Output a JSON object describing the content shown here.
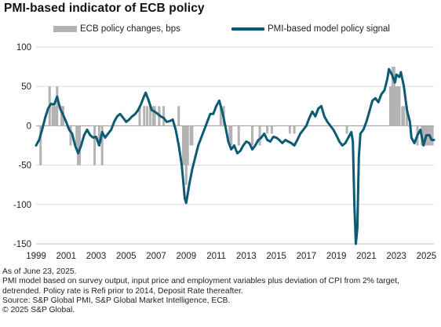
{
  "title": "PMI-based indicator of ECB policy",
  "legend": {
    "bars_label": "ECB policy changes, bps",
    "line_label": "PMI-based model policy signal"
  },
  "notes": {
    "asof": "As of June 23, 2025.",
    "method1": "PMI model based on survey output, input price and employment variables plus deviation of CPI from 2% target,",
    "method2": "detrended. Policy rate is Refi prior to 2014, Deposit Rate thereafter.",
    "source": "Source: S&P Global PMI, S&P Global Market Intelligence, ECB.",
    "copyright": "© 2025 S&P Global."
  },
  "colors": {
    "line": "#0d5a73",
    "bars": "#b3b3b3",
    "grid": "#d9d9d9",
    "zero": "#9a9a9a"
  },
  "chart_data": {
    "type": "bar+line",
    "title": "PMI-based indicator of ECB policy",
    "xlim": [
      1999.0,
      2025.5
    ],
    "ylim": [
      -150,
      100
    ],
    "yticks": [
      -150,
      -100,
      -50,
      0,
      50,
      100
    ],
    "xticks": [
      1999,
      2001,
      2003,
      2005,
      2007,
      2009,
      2011,
      2013,
      2015,
      2017,
      2019,
      2021,
      2023,
      2025
    ],
    "grid": true,
    "legend_position": "top",
    "series": [
      {
        "name": "ECB policy changes, bps",
        "kind": "bar",
        "points": [
          [
            1999.3,
            -50
          ],
          [
            1999.9,
            50
          ],
          [
            2000.1,
            25
          ],
          [
            2000.2,
            25
          ],
          [
            2000.3,
            25
          ],
          [
            2000.4,
            50
          ],
          [
            2000.7,
            25
          ],
          [
            2000.8,
            25
          ],
          [
            2001.3,
            -25
          ],
          [
            2001.7,
            -25
          ],
          [
            2001.8,
            -50
          ],
          [
            2001.9,
            -50
          ],
          [
            2002.9,
            -50
          ],
          [
            2003.2,
            -25
          ],
          [
            2003.4,
            -50
          ],
          [
            2005.9,
            25
          ],
          [
            2006.2,
            25
          ],
          [
            2006.4,
            25
          ],
          [
            2006.6,
            25
          ],
          [
            2006.8,
            25
          ],
          [
            2006.9,
            25
          ],
          [
            2007.2,
            25
          ],
          [
            2007.5,
            25
          ],
          [
            2008.5,
            25
          ],
          [
            2008.8,
            -50
          ],
          [
            2008.9,
            -50
          ],
          [
            2009.0,
            -75
          ],
          [
            2009.1,
            -50
          ],
          [
            2009.3,
            -25
          ],
          [
            2009.4,
            -25
          ],
          [
            2011.3,
            25
          ],
          [
            2011.5,
            25
          ],
          [
            2011.9,
            -25
          ],
          [
            2012.0,
            -25
          ],
          [
            2012.5,
            -25
          ],
          [
            2013.4,
            -25
          ],
          [
            2013.9,
            -25
          ],
          [
            2014.4,
            -10
          ],
          [
            2014.7,
            -10
          ],
          [
            2015.9,
            -10
          ],
          [
            2016.2,
            -10
          ],
          [
            2019.7,
            -10
          ],
          [
            2022.6,
            50
          ],
          [
            2022.75,
            75
          ],
          [
            2022.85,
            75
          ],
          [
            2022.95,
            50
          ],
          [
            2023.1,
            50
          ],
          [
            2023.2,
            50
          ],
          [
            2023.4,
            25
          ],
          [
            2023.5,
            25
          ],
          [
            2023.7,
            25
          ],
          [
            2024.4,
            -25
          ],
          [
            2024.7,
            -25
          ],
          [
            2024.8,
            -25
          ],
          [
            2024.95,
            -25
          ],
          [
            2025.1,
            -25
          ],
          [
            2025.25,
            -25
          ],
          [
            2025.4,
            -25
          ]
        ]
      },
      {
        "name": "PMI-based model policy signal",
        "kind": "line",
        "points": [
          [
            1999.0,
            -25
          ],
          [
            1999.2,
            -18
          ],
          [
            1999.4,
            -5
          ],
          [
            1999.6,
            10
          ],
          [
            1999.8,
            22
          ],
          [
            2000.0,
            28
          ],
          [
            2000.2,
            27
          ],
          [
            2000.4,
            37
          ],
          [
            2000.6,
            22
          ],
          [
            2000.8,
            14
          ],
          [
            2001.0,
            5
          ],
          [
            2001.2,
            -5
          ],
          [
            2001.4,
            -10
          ],
          [
            2001.6,
            -25
          ],
          [
            2001.8,
            -35
          ],
          [
            2002.0,
            -25
          ],
          [
            2002.2,
            -12
          ],
          [
            2002.4,
            -5
          ],
          [
            2002.6,
            -12
          ],
          [
            2002.8,
            -15
          ],
          [
            2003.0,
            -14
          ],
          [
            2003.2,
            -25
          ],
          [
            2003.4,
            -8
          ],
          [
            2003.6,
            -15
          ],
          [
            2003.8,
            -10
          ],
          [
            2004.0,
            -5
          ],
          [
            2004.2,
            5
          ],
          [
            2004.4,
            12
          ],
          [
            2004.6,
            15
          ],
          [
            2004.8,
            10
          ],
          [
            2005.0,
            5
          ],
          [
            2005.2,
            8
          ],
          [
            2005.4,
            12
          ],
          [
            2005.6,
            15
          ],
          [
            2005.8,
            20
          ],
          [
            2006.0,
            28
          ],
          [
            2006.2,
            38
          ],
          [
            2006.3,
            42
          ],
          [
            2006.5,
            32
          ],
          [
            2006.7,
            20
          ],
          [
            2006.9,
            18
          ],
          [
            2007.1,
            15
          ],
          [
            2007.3,
            12
          ],
          [
            2007.5,
            10
          ],
          [
            2007.7,
            5
          ],
          [
            2007.9,
            6
          ],
          [
            2008.1,
            8
          ],
          [
            2008.3,
            -5
          ],
          [
            2008.5,
            -25
          ],
          [
            2008.7,
            -50
          ],
          [
            2008.8,
            -70
          ],
          [
            2008.9,
            -92
          ],
          [
            2009.0,
            -98
          ],
          [
            2009.2,
            -75
          ],
          [
            2009.4,
            -55
          ],
          [
            2009.6,
            -40
          ],
          [
            2009.8,
            -25
          ],
          [
            2010.0,
            -15
          ],
          [
            2010.2,
            -5
          ],
          [
            2010.4,
            5
          ],
          [
            2010.6,
            15
          ],
          [
            2010.8,
            15
          ],
          [
            2011.0,
            25
          ],
          [
            2011.2,
            32
          ],
          [
            2011.4,
            18
          ],
          [
            2011.6,
            0
          ],
          [
            2011.8,
            -20
          ],
          [
            2012.0,
            -30
          ],
          [
            2012.2,
            -25
          ],
          [
            2012.4,
            -35
          ],
          [
            2012.6,
            -32
          ],
          [
            2012.8,
            -25
          ],
          [
            2013.0,
            -20
          ],
          [
            2013.2,
            -22
          ],
          [
            2013.4,
            -30
          ],
          [
            2013.6,
            -25
          ],
          [
            2013.8,
            -18
          ],
          [
            2014.0,
            -15
          ],
          [
            2014.2,
            -10
          ],
          [
            2014.4,
            -18
          ],
          [
            2014.6,
            -20
          ],
          [
            2014.8,
            -14
          ],
          [
            2015.0,
            -15
          ],
          [
            2015.2,
            -18
          ],
          [
            2015.4,
            -22
          ],
          [
            2015.6,
            -18
          ],
          [
            2015.8,
            -20
          ],
          [
            2016.0,
            -22
          ],
          [
            2016.2,
            -25
          ],
          [
            2016.4,
            -18
          ],
          [
            2016.6,
            -10
          ],
          [
            2016.8,
            -5
          ],
          [
            2017.0,
            0
          ],
          [
            2017.2,
            10
          ],
          [
            2017.4,
            18
          ],
          [
            2017.6,
            12
          ],
          [
            2017.8,
            22
          ],
          [
            2018.0,
            25
          ],
          [
            2018.2,
            12
          ],
          [
            2018.4,
            5
          ],
          [
            2018.6,
            0
          ],
          [
            2018.8,
            -5
          ],
          [
            2019.0,
            -12
          ],
          [
            2019.2,
            -20
          ],
          [
            2019.4,
            -25
          ],
          [
            2019.6,
            -22
          ],
          [
            2019.8,
            -15
          ],
          [
            2020.0,
            -8
          ],
          [
            2020.1,
            -20
          ],
          [
            2020.2,
            -100
          ],
          [
            2020.3,
            -150
          ],
          [
            2020.4,
            -130
          ],
          [
            2020.5,
            -40
          ],
          [
            2020.6,
            -10
          ],
          [
            2020.8,
            -5
          ],
          [
            2021.0,
            5
          ],
          [
            2021.2,
            18
          ],
          [
            2021.4,
            32
          ],
          [
            2021.6,
            35
          ],
          [
            2021.8,
            30
          ],
          [
            2022.0,
            40
          ],
          [
            2022.2,
            45
          ],
          [
            2022.4,
            60
          ],
          [
            2022.5,
            72
          ],
          [
            2022.7,
            65
          ],
          [
            2022.9,
            55
          ],
          [
            2023.0,
            65
          ],
          [
            2023.2,
            62
          ],
          [
            2023.3,
            68
          ],
          [
            2023.5,
            50
          ],
          [
            2023.7,
            20
          ],
          [
            2023.9,
            5
          ],
          [
            2024.0,
            -15
          ],
          [
            2024.2,
            -22
          ],
          [
            2024.4,
            -12
          ],
          [
            2024.6,
            -5
          ],
          [
            2024.8,
            -25
          ],
          [
            2025.0,
            -12
          ],
          [
            2025.2,
            -12
          ],
          [
            2025.35,
            -18
          ],
          [
            2025.5,
            -18
          ]
        ]
      }
    ]
  }
}
